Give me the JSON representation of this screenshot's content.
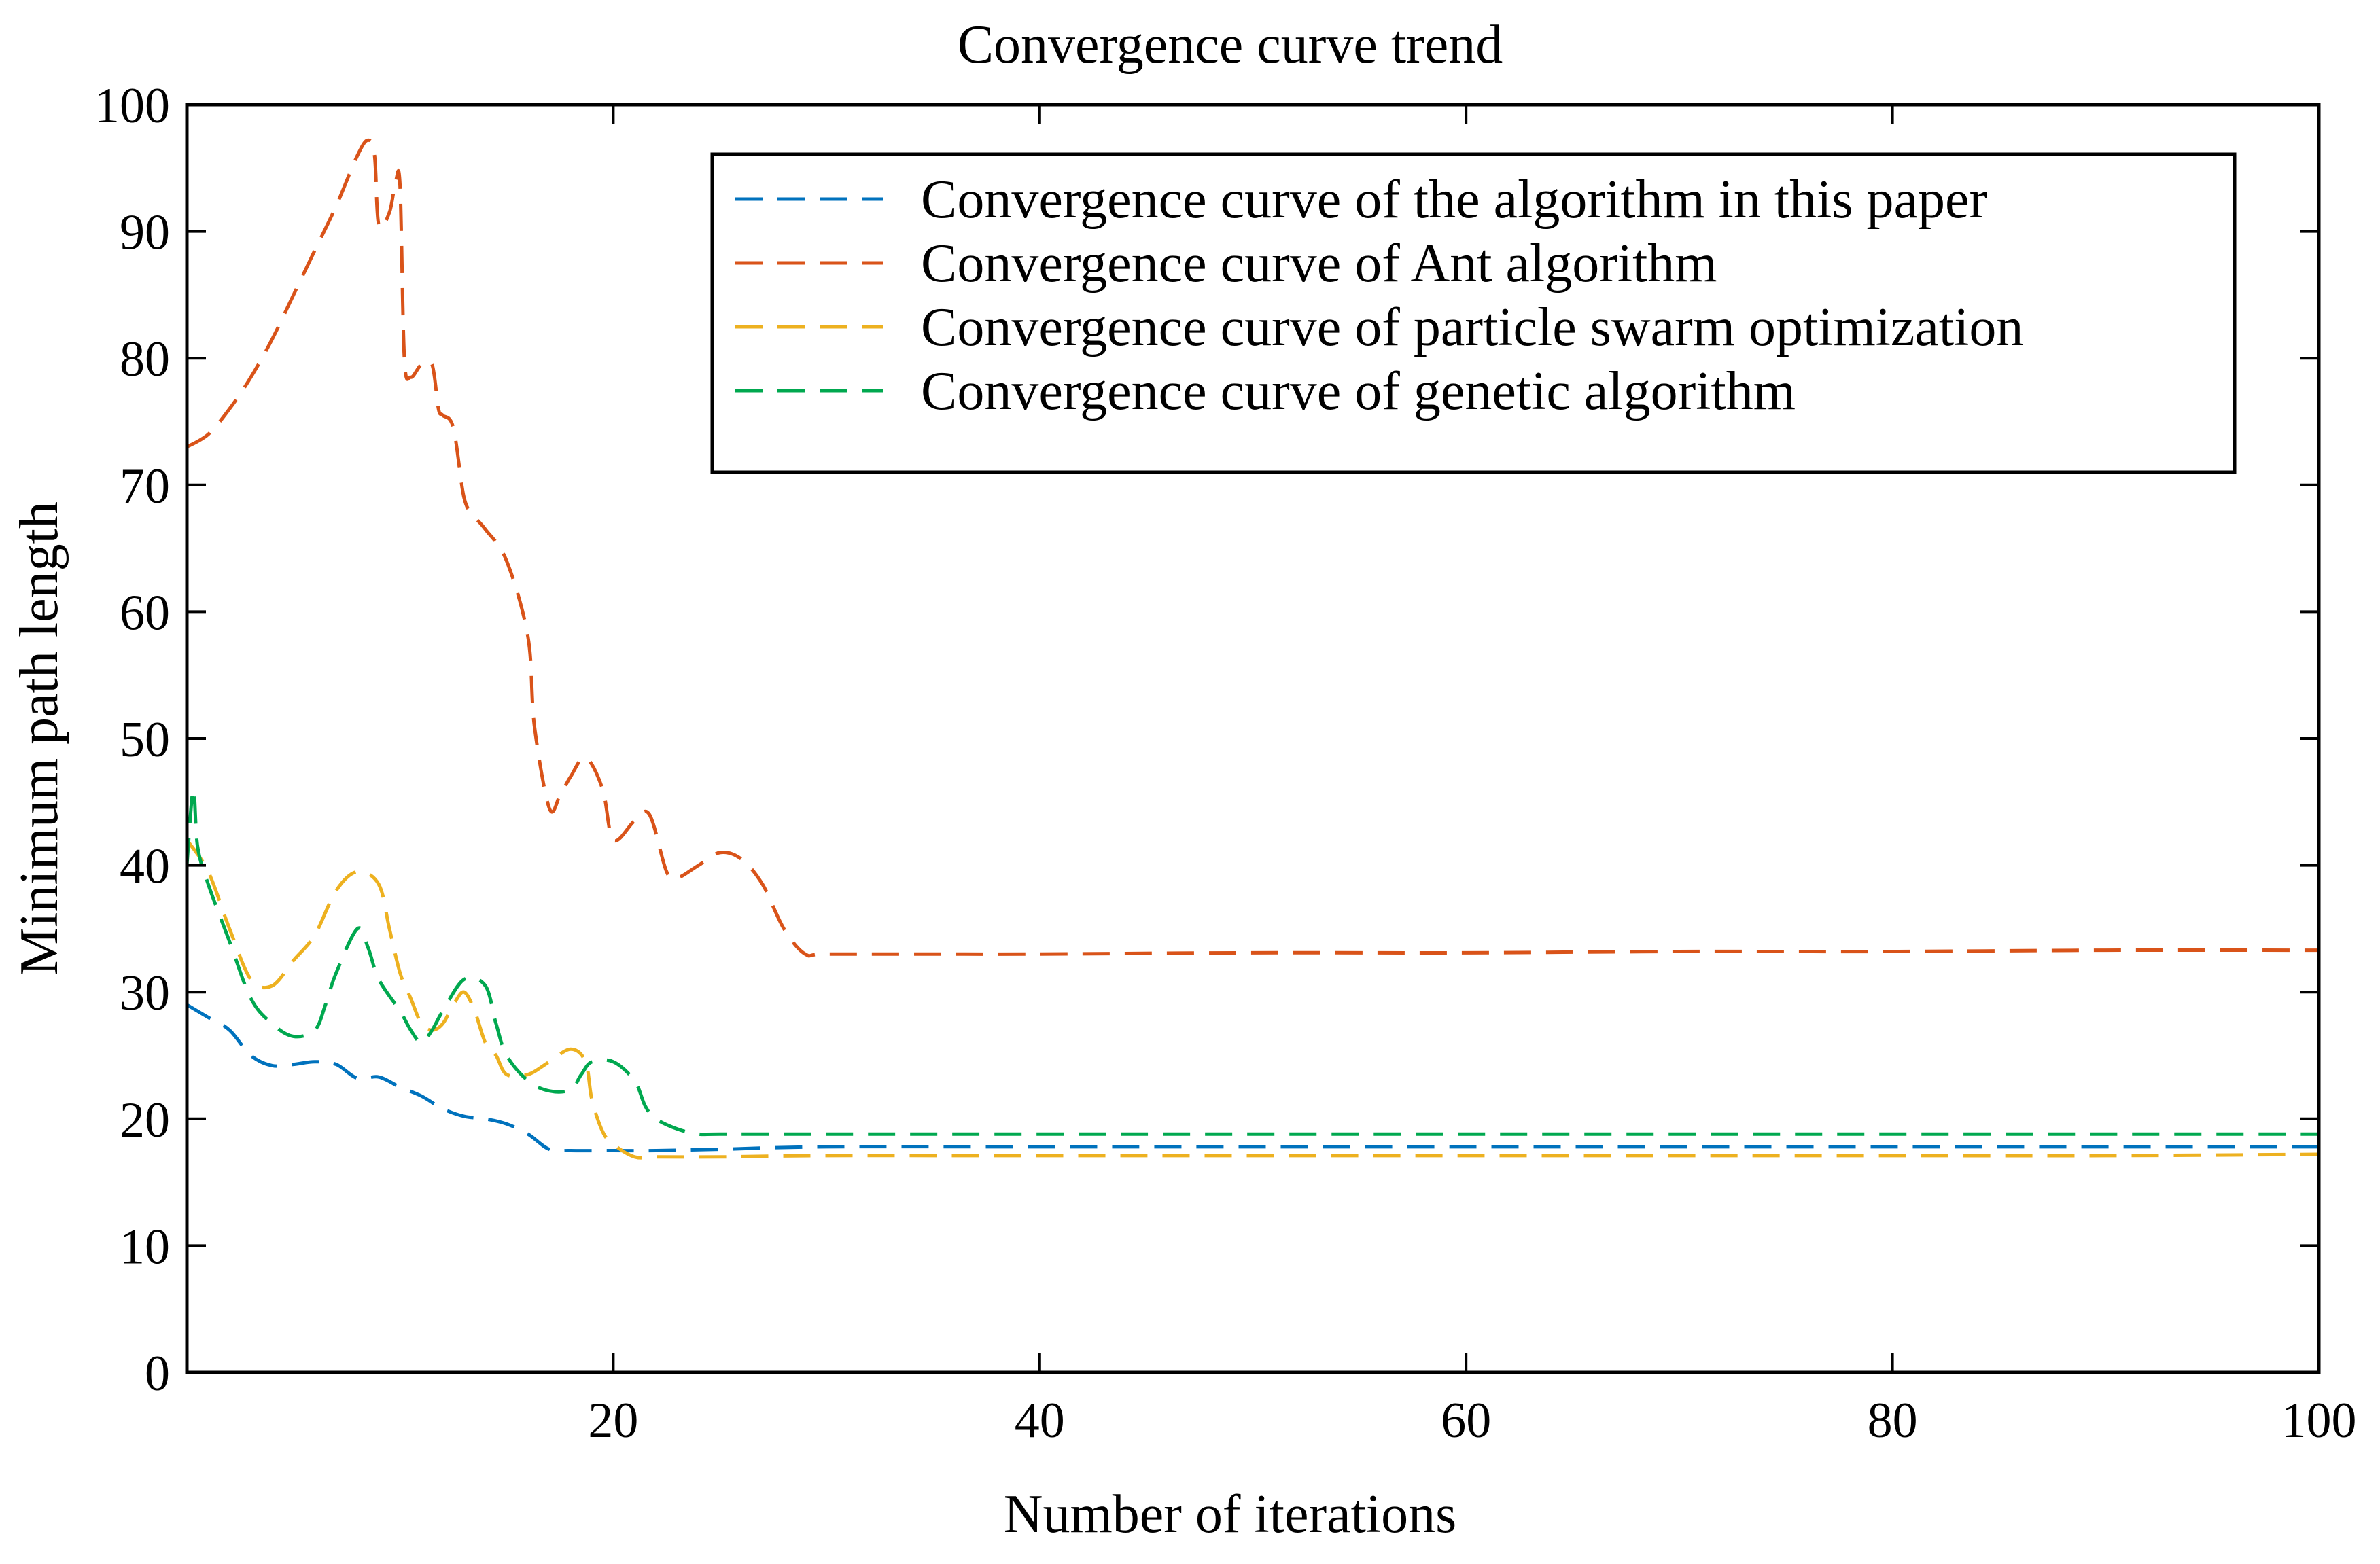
{
  "chart_data": {
    "type": "line",
    "title": "Convergence curve trend",
    "xlabel": "Number of iterations",
    "ylabel": "Minimum path length",
    "xlim": [
      0,
      100
    ],
    "ylim": [
      0,
      100
    ],
    "xticks": [
      20,
      40,
      60,
      80,
      100
    ],
    "yticks": [
      0,
      10,
      20,
      30,
      40,
      50,
      60,
      70,
      80,
      90,
      100
    ],
    "xtick_labels": [
      "20",
      "40",
      "60",
      "80",
      "100"
    ],
    "ytick_labels": [
      "0",
      "10",
      "20",
      "30",
      "40",
      "50",
      "60",
      "70",
      "80",
      "90",
      "100"
    ],
    "grid": false,
    "legend_position": "top-right",
    "series": [
      {
        "name": "Convergence curve of the algorithm in this paper",
        "color": "#0072BD",
        "style": "dashed",
        "points": [
          [
            0,
            29
          ],
          [
            1,
            28
          ],
          [
            2,
            27
          ],
          [
            3,
            25
          ],
          [
            4,
            24.2
          ],
          [
            5,
            24.3
          ],
          [
            6,
            24.5
          ],
          [
            7,
            24.3
          ],
          [
            8,
            23.2
          ],
          [
            9,
            23.3
          ],
          [
            10,
            22.5
          ],
          [
            11,
            21.8
          ],
          [
            12,
            20.8
          ],
          [
            13,
            20.2
          ],
          [
            14,
            20
          ],
          [
            15,
            19.6
          ],
          [
            16,
            18.8
          ],
          [
            17,
            17.6
          ],
          [
            18,
            17.5
          ],
          [
            20,
            17.5
          ],
          [
            22,
            17.5
          ],
          [
            25,
            17.6
          ],
          [
            30,
            17.8
          ],
          [
            40,
            17.8
          ],
          [
            60,
            17.8
          ],
          [
            80,
            17.8
          ],
          [
            100,
            17.8
          ]
        ]
      },
      {
        "name": "Convergence curve of Ant algorithm",
        "color": "#D95319",
        "style": "dashed",
        "points": [
          [
            0,
            73
          ],
          [
            1,
            74
          ],
          [
            2,
            76
          ],
          [
            3,
            78.5
          ],
          [
            4,
            81.5
          ],
          [
            5,
            85
          ],
          [
            6,
            88.5
          ],
          [
            7,
            92
          ],
          [
            8,
            96
          ],
          [
            8.5,
            97.2
          ],
          [
            8.8,
            96
          ],
          [
            9,
            90.5
          ],
          [
            9.5,
            91.5
          ],
          [
            9.8,
            94
          ],
          [
            10,
            93.5
          ],
          [
            10.2,
            80
          ],
          [
            10.5,
            78.5
          ],
          [
            11,
            79.5
          ],
          [
            11.5,
            79.5
          ],
          [
            11.8,
            76
          ],
          [
            12,
            75.5
          ],
          [
            12.5,
            74.5
          ],
          [
            13,
            69
          ],
          [
            13.5,
            67.5
          ],
          [
            14,
            66.5
          ],
          [
            15,
            64
          ],
          [
            16,
            58
          ],
          [
            16.3,
            51
          ],
          [
            17,
            44.5
          ],
          [
            17.5,
            45.5
          ],
          [
            18,
            47
          ],
          [
            18.7,
            48.5
          ],
          [
            19.5,
            46
          ],
          [
            20,
            42
          ],
          [
            21,
            43.5
          ],
          [
            21.7,
            44
          ],
          [
            22.5,
            39.5
          ],
          [
            23,
            39
          ],
          [
            24,
            40
          ],
          [
            25,
            41
          ],
          [
            26,
            40.5
          ],
          [
            27,
            38.5
          ],
          [
            28,
            35
          ],
          [
            29,
            33
          ],
          [
            30,
            33
          ],
          [
            35,
            33
          ],
          [
            40,
            33
          ],
          [
            50,
            33.1
          ],
          [
            60,
            33.1
          ],
          [
            70,
            33.2
          ],
          [
            80,
            33.2
          ],
          [
            90,
            33.3
          ],
          [
            100,
            33.3
          ]
        ]
      },
      {
        "name": "Convergence curve of particle swarm optimization",
        "color": "#EDB120",
        "style": "dashed",
        "points": [
          [
            0,
            42
          ],
          [
            1,
            39.5
          ],
          [
            2,
            35
          ],
          [
            3,
            31
          ],
          [
            4,
            30.5
          ],
          [
            5,
            32.5
          ],
          [
            6,
            34.5
          ],
          [
            7,
            38
          ],
          [
            8,
            39.5
          ],
          [
            9,
            38.5
          ],
          [
            9.5,
            35
          ],
          [
            10,
            31.5
          ],
          [
            10.5,
            29.5
          ],
          [
            11,
            27.5
          ],
          [
            11.5,
            27
          ],
          [
            12,
            27.5
          ],
          [
            12.5,
            29
          ],
          [
            13,
            30
          ],
          [
            13.5,
            28.5
          ],
          [
            14,
            26
          ],
          [
            14.5,
            25
          ],
          [
            15,
            23.5
          ],
          [
            16,
            23.5
          ],
          [
            17,
            24.5
          ],
          [
            18,
            25.5
          ],
          [
            18.7,
            24.5
          ],
          [
            19,
            21.5
          ],
          [
            19.5,
            19
          ],
          [
            20,
            18
          ],
          [
            21,
            17
          ],
          [
            22,
            17
          ],
          [
            25,
            17
          ],
          [
            30,
            17.1
          ],
          [
            40,
            17.1
          ],
          [
            60,
            17.1
          ],
          [
            80,
            17.1
          ],
          [
            90,
            17.1
          ],
          [
            100,
            17.2
          ]
        ]
      },
      {
        "name": "Convergence curve of genetic algorithm",
        "color": "#00A84F",
        "style": "dashed",
        "points": [
          [
            0,
            40
          ],
          [
            0.3,
            46
          ],
          [
            0.5,
            41.5
          ],
          [
            1,
            38.5
          ],
          [
            2,
            34
          ],
          [
            3,
            29.5
          ],
          [
            4,
            27.5
          ],
          [
            5,
            26.5
          ],
          [
            6,
            27
          ],
          [
            6.5,
            29
          ],
          [
            7,
            31.5
          ],
          [
            8,
            35
          ],
          [
            8.5,
            33.5
          ],
          [
            9,
            31
          ],
          [
            10,
            28.5
          ],
          [
            10.5,
            27
          ],
          [
            11,
            26
          ],
          [
            11.5,
            27
          ],
          [
            12,
            28.5
          ],
          [
            13,
            31
          ],
          [
            14,
            30.5
          ],
          [
            14.5,
            27.5
          ],
          [
            15,
            25
          ],
          [
            16,
            23
          ],
          [
            17,
            22.2
          ],
          [
            18,
            22.3
          ],
          [
            18.5,
            23.5
          ],
          [
            19,
            24.5
          ],
          [
            20,
            24.5
          ],
          [
            21,
            23
          ],
          [
            21.5,
            21
          ],
          [
            22,
            20
          ],
          [
            23,
            19.2
          ],
          [
            24,
            18.8
          ],
          [
            25,
            18.8
          ],
          [
            30,
            18.8
          ],
          [
            40,
            18.8
          ],
          [
            60,
            18.8
          ],
          [
            80,
            18.8
          ],
          [
            100,
            18.8
          ]
        ]
      }
    ]
  }
}
